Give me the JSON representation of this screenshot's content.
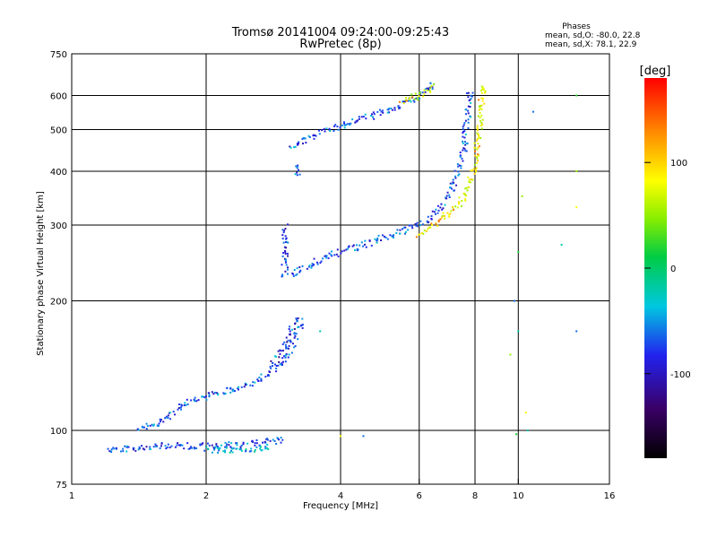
{
  "chart_data": {
    "type": "scatter",
    "title": "Tromsø 20141004 09:24:00-09:25:43",
    "subtitle": "RwPretec (8p)",
    "xlabel": "Frequency [MHz]",
    "ylabel": "Stationary phase Virtual Height [km]",
    "x_scale": "log",
    "y_scale": "log",
    "xlim": [
      1,
      16
    ],
    "ylim": [
      75,
      750
    ],
    "x_ticks": [
      1,
      2,
      4,
      6,
      8,
      10,
      16
    ],
    "x_tick_labels": [
      "1",
      "2",
      "4",
      "6",
      "8",
      "10",
      "16"
    ],
    "y_ticks": [
      75,
      100,
      200,
      300,
      400,
      500,
      600,
      750
    ],
    "y_tick_labels": [
      "75",
      "100",
      "200",
      "300",
      "400",
      "500",
      "600",
      "750"
    ],
    "grid": true,
    "stats": {
      "heading": "Phases",
      "line1": "mean, sd,O: -80.0, 22.8",
      "line2": "mean, sd,X:  78.1, 22.9"
    },
    "colorbar": {
      "label": "[deg]",
      "range": [
        -180,
        180
      ],
      "ticks": [
        100,
        0,
        -100
      ],
      "tick_labels": [
        "100",
        "0",
        "-100"
      ]
    },
    "traces": [
      {
        "kind": "line",
        "phase": -85,
        "mode": "blue",
        "points": [
          [
            1.2,
            90
          ],
          [
            1.6,
            92
          ],
          [
            2.0,
            92
          ],
          [
            2.5,
            93
          ],
          [
            3.0,
            95
          ]
        ]
      },
      {
        "kind": "line",
        "phase": -50,
        "mode": "cyan",
        "points": [
          [
            2.0,
            90
          ],
          [
            2.4,
            90
          ],
          [
            2.8,
            92
          ]
        ]
      },
      {
        "kind": "line",
        "phase": -80,
        "mode": "blue",
        "points": [
          [
            1.4,
            100
          ],
          [
            1.6,
            105
          ],
          [
            1.8,
            115
          ],
          [
            2.0,
            120
          ],
          [
            2.3,
            125
          ],
          [
            2.6,
            130
          ],
          [
            2.9,
            140
          ],
          [
            3.1,
            155
          ],
          [
            3.2,
            170
          ],
          [
            3.3,
            180
          ]
        ]
      },
      {
        "kind": "line",
        "phase": -100,
        "mode": "blue",
        "points": [
          [
            2.8,
            140
          ],
          [
            3.0,
            155
          ],
          [
            3.1,
            170
          ],
          [
            3.2,
            185
          ]
        ]
      },
      {
        "kind": "line",
        "phase": -80,
        "mode": "blue",
        "points": [
          [
            3.1,
            228
          ],
          [
            3.2,
            235
          ],
          [
            3.5,
            245
          ],
          [
            4.0,
            260
          ],
          [
            4.5,
            270
          ],
          [
            5.0,
            280
          ],
          [
            5.5,
            290
          ],
          [
            6.0,
            300
          ],
          [
            6.5,
            320
          ],
          [
            7.0,
            350
          ],
          [
            7.3,
            390
          ],
          [
            7.5,
            430
          ],
          [
            7.6,
            480
          ],
          [
            7.7,
            540
          ],
          [
            7.8,
            620
          ]
        ]
      },
      {
        "kind": "line",
        "phase": 80,
        "mode": "yellow",
        "points": [
          [
            6.0,
            285
          ],
          [
            6.5,
            300
          ],
          [
            7.0,
            320
          ],
          [
            7.5,
            345
          ],
          [
            7.8,
            380
          ],
          [
            8.0,
            420
          ],
          [
            8.1,
            470
          ],
          [
            8.2,
            530
          ],
          [
            8.3,
            600
          ],
          [
            8.4,
            640
          ]
        ]
      },
      {
        "kind": "line",
        "phase": -90,
        "mode": "blue",
        "points": [
          [
            3.0,
            228
          ],
          [
            3.0,
            260
          ],
          [
            3.0,
            300
          ]
        ]
      },
      {
        "kind": "line",
        "phase": -80,
        "mode": "blue",
        "points": [
          [
            3.1,
            450
          ],
          [
            3.4,
            480
          ],
          [
            4.0,
            510
          ],
          [
            4.5,
            530
          ],
          [
            5.0,
            550
          ],
          [
            5.5,
            570
          ],
          [
            6.0,
            600
          ],
          [
            6.5,
            640
          ]
        ]
      },
      {
        "kind": "line",
        "phase": -70,
        "mode": "blue",
        "points": [
          [
            3.2,
            390
          ],
          [
            3.2,
            420
          ]
        ]
      },
      {
        "kind": "line",
        "phase": 60,
        "mode": "yellow",
        "points": [
          [
            5.5,
            580
          ],
          [
            6.0,
            600
          ],
          [
            6.5,
            630
          ]
        ]
      },
      {
        "kind": "scatter",
        "phase": -10,
        "mode": "misc",
        "points": [
          [
            9.8,
            200
          ],
          [
            10.0,
            170
          ],
          [
            10.0,
            260
          ],
          [
            10.2,
            350
          ],
          [
            10.4,
            110
          ],
          [
            10.8,
            550
          ],
          [
            12.5,
            270
          ],
          [
            13.5,
            600
          ],
          [
            13.5,
            400
          ],
          [
            13.5,
            330
          ],
          [
            13.5,
            170
          ],
          [
            10.5,
            100
          ],
          [
            9.9,
            98
          ],
          [
            9.6,
            150
          ],
          [
            4.0,
            97
          ],
          [
            4.5,
            97
          ],
          [
            3.6,
            170
          ]
        ]
      }
    ]
  }
}
